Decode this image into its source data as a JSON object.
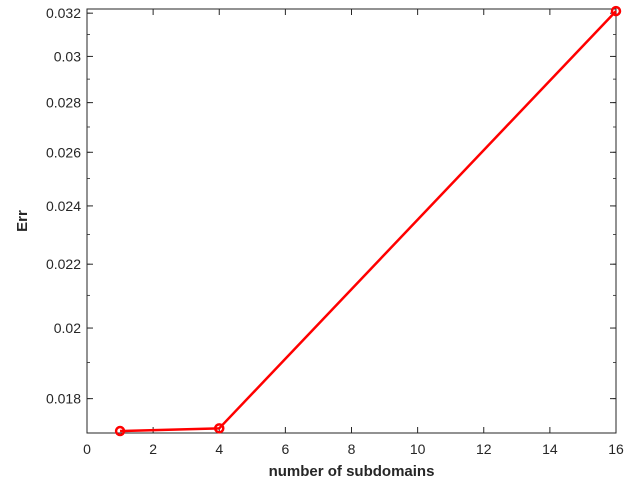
{
  "chart_data": {
    "type": "line",
    "xlabel": "number of subdomains",
    "ylabel": "Err",
    "xlim": [
      0,
      16
    ],
    "ylim": [
      0.0171,
      0.0322
    ],
    "y_scale": "log",
    "grid": false,
    "x_ticks": [
      0,
      2,
      4,
      6,
      8,
      10,
      12,
      14,
      16
    ],
    "x_tick_labels": [
      "0",
      "2",
      "4",
      "6",
      "8",
      "10",
      "12",
      "14",
      "16"
    ],
    "y_ticks": [
      0.018,
      0.02,
      0.022,
      0.024,
      0.026,
      0.028,
      0.03,
      0.032
    ],
    "y_tick_labels": [
      "0.018",
      "0.02",
      "0.022",
      "0.024",
      "0.026",
      "0.028",
      "0.03",
      "0.032"
    ],
    "series": [
      {
        "x": [
          1,
          4,
          16
        ],
        "values": [
          0.01715,
          0.01722,
          0.0321
        ],
        "color": "#ff0000",
        "marker": "circle"
      }
    ]
  }
}
